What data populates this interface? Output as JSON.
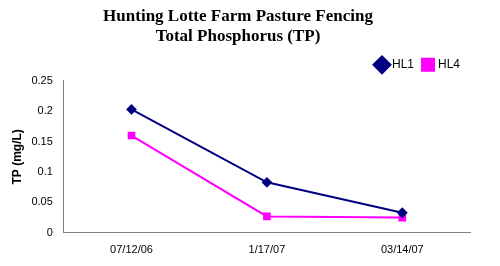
{
  "chart_data": {
    "type": "line",
    "title": "Hunting Lotte Farm Pasture Fencing\nTotal Phosphorus (TP)",
    "y_label": "TP (mg/L)",
    "categories": [
      "07/12/06",
      "1/17/07",
      "03/14/07"
    ],
    "series": [
      {
        "name": "HL1",
        "color": "#000080",
        "marker": "diamond",
        "values": [
          0.203,
          0.083,
          0.033
        ]
      },
      {
        "name": "HL4",
        "color": "#ff00ff",
        "marker": "square",
        "values": [
          0.16,
          0.027,
          0.025
        ]
      }
    ],
    "ylim": [
      0,
      0.25
    ],
    "yticks": [
      0,
      0.05,
      0.1,
      0.15,
      0.2,
      0.25
    ],
    "grid": false,
    "legend": "top-right"
  }
}
